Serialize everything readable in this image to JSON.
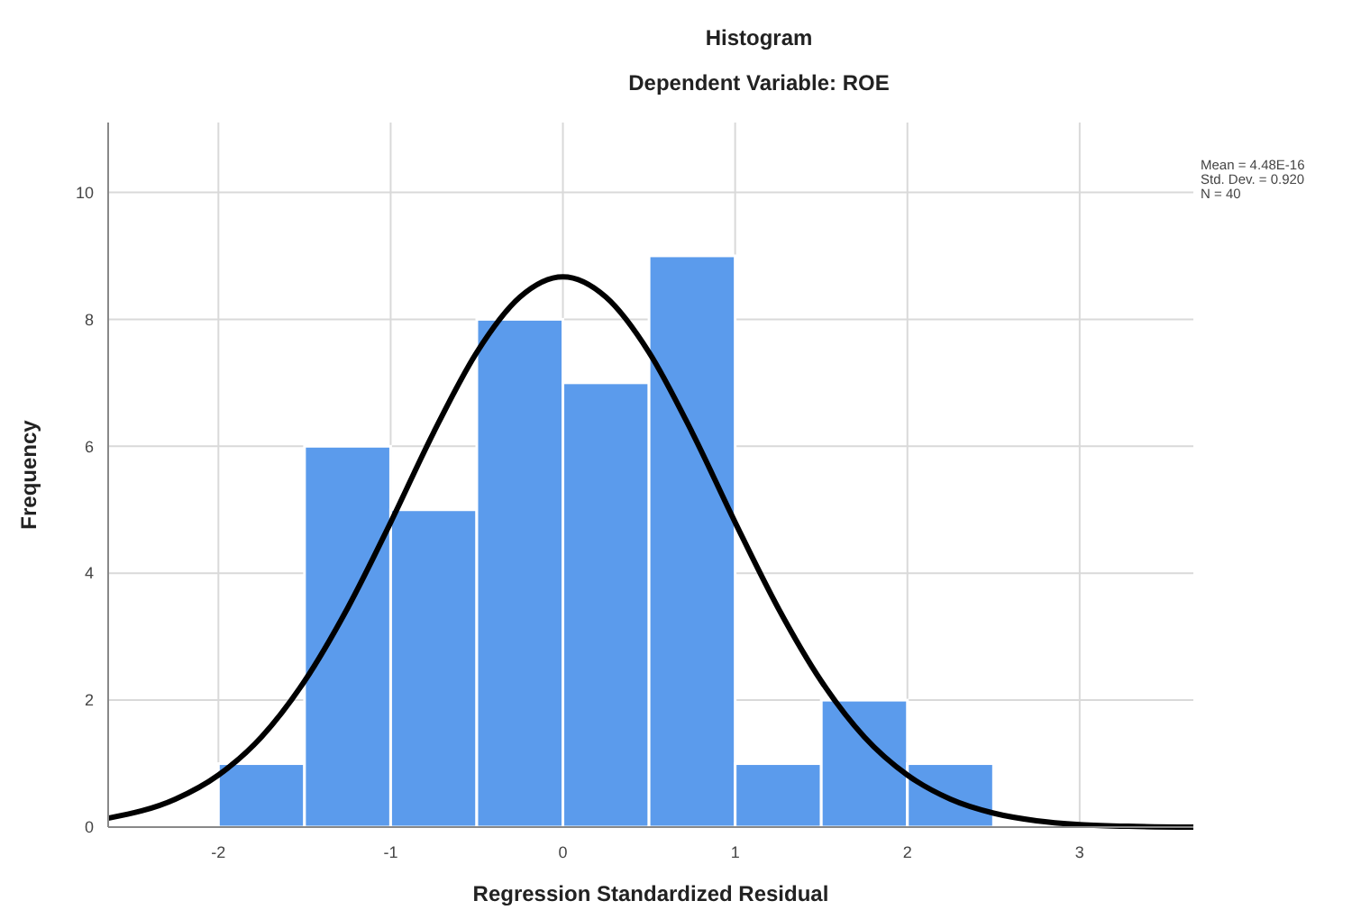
{
  "chart_data": {
    "type": "histogram",
    "title": "Histogram",
    "subtitle": "Dependent Variable: ROE",
    "xlabel": "Regression Standardized Residual",
    "ylabel": "Frequency",
    "xlim": [
      -2.64,
      3.66
    ],
    "xticks": [
      -2,
      -1,
      0,
      1,
      2,
      3
    ],
    "ylim": [
      0,
      11.1
    ],
    "yticks": [
      0,
      2,
      4,
      6,
      8,
      10
    ],
    "grid": true,
    "series": [
      {
        "color": "#5b9bec",
        "bins": [
          -2,
          -1.5,
          -1,
          -0.5,
          0,
          0.5,
          1,
          1.5,
          2,
          2.5
        ],
        "values": [
          1,
          6,
          5,
          8,
          7,
          9,
          1,
          2,
          1
        ]
      },
      {
        "type": "line",
        "color": "#000000",
        "x": [
          -2.64,
          -2.25,
          -2,
          -1.75,
          -1.5,
          -1.25,
          -1,
          -0.75,
          -0.5,
          -0.25,
          0,
          0.25,
          0.5,
          0.75,
          1,
          1.25,
          1.5,
          1.75,
          2,
          2.25,
          2.5,
          2.75,
          3,
          3.33,
          3.66
        ],
        "values": [
          0.14,
          0.44,
          0.82,
          1.42,
          2.3,
          3.45,
          4.8,
          6.22,
          7.48,
          8.35,
          8.67,
          8.35,
          7.48,
          6.22,
          4.8,
          3.45,
          2.3,
          1.42,
          0.82,
          0.44,
          0.22,
          0.1,
          0.04,
          0.01,
          0
        ]
      }
    ],
    "annotations": [
      "Mean = 4.48E-16",
      "Std. Dev. = 0.920",
      "N = 40"
    ]
  }
}
